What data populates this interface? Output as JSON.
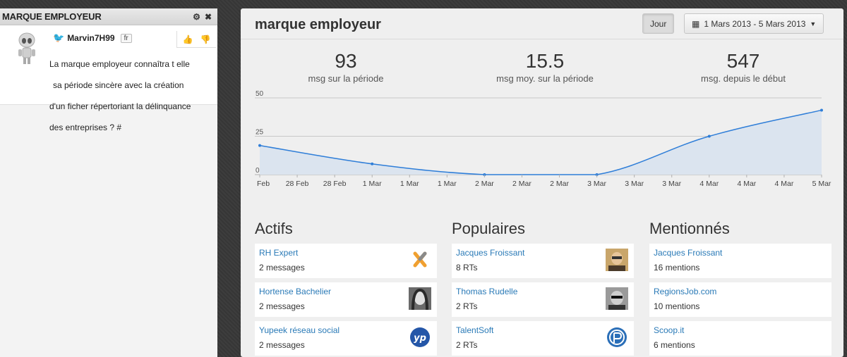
{
  "left_panel": {
    "title": "MARQUE EMPLOYEUR",
    "tweet": {
      "username": "Marvin7H99",
      "lang": "fr",
      "text_lines": [
        "La marque employeur connaîtra t elle",
        "sa période sincère avec la création",
        "d'un ficher répertoriant la délinquance",
        "des  entreprises ? #"
      ]
    }
  },
  "main": {
    "title": "marque employeur",
    "btn_jour": "Jour",
    "btn_date": "1 Mars 2013 - 5 Mars 2013",
    "stats": [
      {
        "value": "93",
        "label": "msg sur la période"
      },
      {
        "value": "15.5",
        "label": "msg moy. sur la période"
      },
      {
        "value": "547",
        "label": "msg. depuis le début"
      }
    ],
    "chart_data": {
      "type": "area",
      "y_ticks": [
        "50",
        "25",
        "0"
      ],
      "ylim": [
        0,
        50
      ],
      "x_tick_labels": [
        "Feb",
        "28 Feb",
        "28 Feb",
        "1 Mar",
        "1 Mar",
        "1 Mar",
        "2 Mar",
        "2 Mar",
        "2 Mar",
        "3 Mar",
        "3 Mar",
        "3 Mar",
        "4 Mar",
        "4 Mar",
        "4 Mar",
        "5 Mar"
      ],
      "points": [
        {
          "x": "27 Feb",
          "y": 19
        },
        {
          "x": "28 Feb",
          "y": 7
        },
        {
          "x": "1 Mar",
          "y": 0
        },
        {
          "x": "2 Mar",
          "y": 0
        },
        {
          "x": "3 Mar",
          "y": 25
        },
        {
          "x": "4 Mar",
          "y": 42
        }
      ],
      "line_color": "#2f7ed8",
      "fill_color": "#dbe4ef"
    },
    "columns": [
      {
        "title": "Actifs",
        "items": [
          {
            "name": "RH Expert",
            "count": "2 messages",
            "icon": "rh-expert-logo"
          },
          {
            "name": "Hortense Bachelier",
            "count": "2 messages",
            "icon": "avatar-hortense"
          },
          {
            "name": "Yupeek réseau social",
            "count": "2 messages",
            "icon": "yupeek-logo"
          }
        ]
      },
      {
        "title": "Populaires",
        "items": [
          {
            "name": "Jacques Froissant",
            "count": "8 RTs",
            "icon": "avatar-jacques"
          },
          {
            "name": "Thomas Rudelle",
            "count": "2 RTs",
            "icon": "avatar-thomas"
          },
          {
            "name": "TalentSoft",
            "count": "2 RTs",
            "icon": "talentsoft-logo"
          }
        ]
      },
      {
        "title": "Mentionnés",
        "items": [
          {
            "name": "Jacques Froissant",
            "count": "16 mentions"
          },
          {
            "name": "RegionsJob.com",
            "count": "10 mentions"
          },
          {
            "name": "Scoop.it",
            "count": "6 mentions"
          }
        ]
      }
    ]
  }
}
